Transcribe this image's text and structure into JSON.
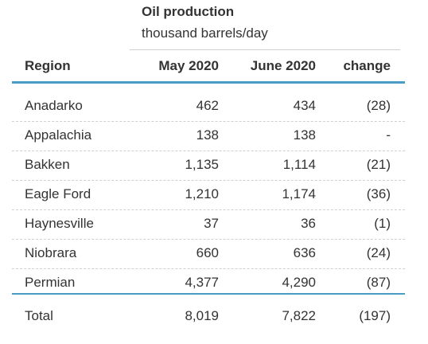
{
  "header": {
    "group_title": "Oil production",
    "group_subtitle": "thousand barrels/day",
    "columns": {
      "region": "Region",
      "may": "May 2020",
      "june": "June 2020",
      "change": "change"
    }
  },
  "rows": [
    {
      "region": "Anadarko",
      "may": "462",
      "june": "434",
      "change": "(28)"
    },
    {
      "region": "Appalachia",
      "may": "138",
      "june": "138",
      "change": "-"
    },
    {
      "region": "Bakken",
      "may": "1,135",
      "june": "1,114",
      "change": "(21)"
    },
    {
      "region": "Eagle Ford",
      "may": "1,210",
      "june": "1,174",
      "change": "(36)"
    },
    {
      "region": "Haynesville",
      "may": "37",
      "june": "36",
      "change": "(1)"
    },
    {
      "region": "Niobrara",
      "may": "660",
      "june": "636",
      "change": "(24)"
    },
    {
      "region": "Permian",
      "may": "4,377",
      "june": "4,290",
      "change": "(87)"
    }
  ],
  "total": {
    "region": "Total",
    "may": "8,019",
    "june": "7,822",
    "change": "(197)"
  },
  "colors": {
    "accent_rule": "#4a9cc4",
    "text": "#333333"
  }
}
